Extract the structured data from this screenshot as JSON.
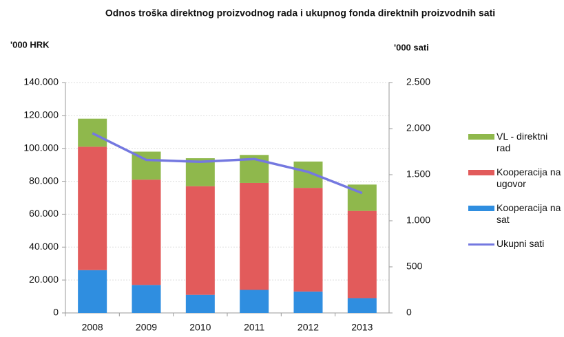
{
  "chart_data": {
    "type": "stacked_bar_line",
    "title": "Odnos troška direktnog proizvodnog rada i ukupnog fonda direktnih proizvodnih sati",
    "y_label": "'000 HRK",
    "y2_label": "'000 sati",
    "categories": [
      "2008",
      "2009",
      "2010",
      "2011",
      "2012",
      "2013"
    ],
    "series": [
      {
        "name": "Kooperacija na sat",
        "color": "#2f8ee0",
        "values": [
          26000,
          17000,
          11000,
          14000,
          13000,
          9000
        ]
      },
      {
        "name": "Kooperacija na ugovor",
        "color": "#e25b5b",
        "values": [
          75000,
          64000,
          66000,
          65000,
          63000,
          53000
        ]
      },
      {
        "name": "VL - direktni rad",
        "color": "#8fb84c",
        "values": [
          17000,
          17000,
          17000,
          17000,
          16000,
          16000
        ]
      },
      {
        "name": "Ukupni sati",
        "color": "#7478e0",
        "axis": "y2",
        "values": [
          1950,
          1660,
          1640,
          1670,
          1530,
          1300
        ]
      }
    ],
    "legend_order": [
      2,
      1,
      0,
      3
    ],
    "ylim": [
      0,
      140000
    ],
    "yticks": [
      0,
      {
        "value": 20000,
        "label": "20.000"
      },
      {
        "value": 40000,
        "label": "40.000"
      },
      {
        "value": 60000,
        "label": "60.000"
      },
      {
        "value": 80000,
        "label": "80.000"
      },
      {
        "value": 100000,
        "label": "100.000"
      },
      {
        "value": 120000,
        "label": "120.000"
      },
      {
        "value": 140000,
        "label": "140.000"
      }
    ],
    "y2lim": [
      0,
      2500
    ],
    "y2ticks": [
      0,
      500,
      {
        "value": 1000,
        "label": "1.000"
      },
      {
        "value": 1500,
        "label": "1.500"
      },
      {
        "value": 2000,
        "label": "2.000"
      },
      {
        "value": 2500,
        "label": "2.500"
      }
    ],
    "grid": true,
    "legend_position": "right"
  }
}
